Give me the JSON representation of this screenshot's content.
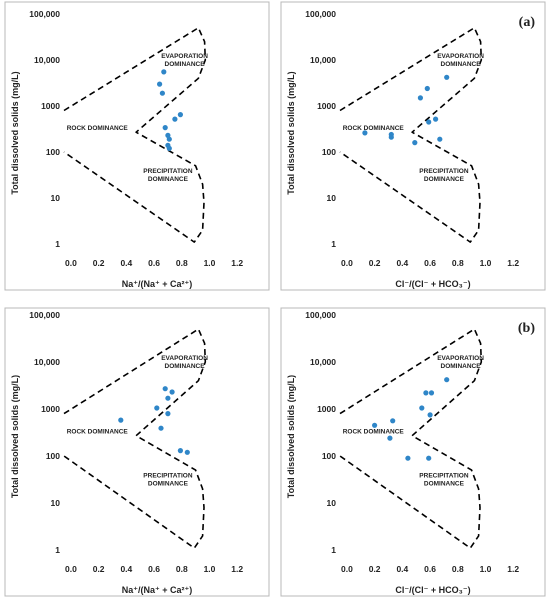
{
  "colors": {
    "point": "#2f86c8",
    "frame": "#b8b8b8",
    "boundary": "#000000"
  },
  "chart_data": [
    {
      "type": "scatter",
      "panel_label": "",
      "xlabel": "Na⁺/(Na⁺ + Ca²⁺)",
      "ylabel": "Total dissolved solids (mg/L)",
      "xlim": [
        -0.05,
        1.35
      ],
      "ylim": [
        1,
        100000
      ],
      "yscale": "log",
      "xticks": [
        "0.0",
        "0.2",
        "0.4",
        "0.6",
        "0.8",
        "1.0",
        "1.2"
      ],
      "yticks": [
        "1",
        "10",
        "100",
        "1000",
        "10,000",
        "100,000"
      ],
      "regions": {
        "evaporation": [
          "EVAPORATION",
          "DOMINANCE"
        ],
        "rock": "ROCK DOMINANCE",
        "precipitation": [
          "PRECIPITATION",
          "DOMINANCE"
        ]
      },
      "points": [
        [
          0.67,
          5500
        ],
        [
          0.64,
          3000
        ],
        [
          0.66,
          1900
        ],
        [
          0.79,
          650
        ],
        [
          0.75,
          520
        ],
        [
          0.68,
          340
        ],
        [
          0.7,
          230
        ],
        [
          0.71,
          190
        ],
        [
          0.7,
          140
        ],
        [
          0.71,
          120
        ]
      ]
    },
    {
      "type": "scatter",
      "panel_label": "(a)",
      "xlabel": "Cl⁻/(Cl⁻ + HCO₃⁻)",
      "ylabel": "Total dissolved solids (mg/L)",
      "xlim": [
        -0.05,
        1.35
      ],
      "ylim": [
        1,
        100000
      ],
      "yscale": "log",
      "xticks": [
        "0.0",
        "0.2",
        "0.4",
        "0.6",
        "0.8",
        "1.0",
        "1.2"
      ],
      "yticks": [
        "1",
        "10",
        "100",
        "1000",
        "10,000",
        "100,000"
      ],
      "regions": {
        "evaporation": [
          "EVAPORATION",
          "DOMINANCE"
        ],
        "rock": "ROCK DOMINANCE",
        "precipitation": [
          "PRECIPITATION",
          "DOMINANCE"
        ]
      },
      "points": [
        [
          0.72,
          4200
        ],
        [
          0.58,
          2400
        ],
        [
          0.53,
          1500
        ],
        [
          0.64,
          520
        ],
        [
          0.59,
          450
        ],
        [
          0.13,
          260
        ],
        [
          0.32,
          240
        ],
        [
          0.32,
          210
        ],
        [
          0.67,
          190
        ],
        [
          0.49,
          160
        ]
      ]
    },
    {
      "type": "scatter",
      "panel_label": "",
      "xlabel": "Na⁺/(Na⁺ + Ca²⁺)",
      "ylabel": "Total dissolved solids (mg/L)",
      "xlim": [
        -0.05,
        1.35
      ],
      "ylim": [
        1,
        100000
      ],
      "yscale": "log",
      "xticks": [
        "0.0",
        "0.2",
        "0.4",
        "0.6",
        "0.8",
        "1.0",
        "1.2"
      ],
      "yticks": [
        "1",
        "10",
        "100",
        "1000",
        "10,000",
        "100,000"
      ],
      "regions": {
        "evaporation": [
          "EVAPORATION",
          "DOMINANCE"
        ],
        "rock": "ROCK DOMINANCE",
        "precipitation": [
          "PRECIPITATION",
          "DOMINANCE"
        ]
      },
      "points": [
        [
          0.68,
          2700
        ],
        [
          0.73,
          2300
        ],
        [
          0.7,
          1700
        ],
        [
          0.62,
          1050
        ],
        [
          0.7,
          800
        ],
        [
          0.36,
          580
        ],
        [
          0.65,
          390
        ],
        [
          0.79,
          130
        ],
        [
          0.84,
          120
        ]
      ]
    },
    {
      "type": "scatter",
      "panel_label": "(b)",
      "xlabel": "Cl⁻/(Cl⁻ + HCO₃⁻)",
      "ylabel": "Total dissolved solids (mg/L)",
      "xlim": [
        -0.05,
        1.35
      ],
      "ylim": [
        1,
        100000
      ],
      "yscale": "log",
      "xticks": [
        "0.0",
        "0.2",
        "0.4",
        "0.6",
        "0.8",
        "1.0",
        "1.2"
      ],
      "yticks": [
        "1",
        "10",
        "100",
        "1000",
        "10,000",
        "100,000"
      ],
      "regions": {
        "evaporation": [
          "EVAPORATION",
          "DOMINANCE"
        ],
        "rock": "ROCK DOMINANCE",
        "precipitation": [
          "PRECIPITATION",
          "DOMINANCE"
        ]
      },
      "points": [
        [
          0.72,
          4200
        ],
        [
          0.57,
          2200
        ],
        [
          0.61,
          2200
        ],
        [
          0.54,
          1050
        ],
        [
          0.6,
          750
        ],
        [
          0.33,
          560
        ],
        [
          0.2,
          450
        ],
        [
          0.31,
          240
        ],
        [
          0.44,
          90
        ],
        [
          0.59,
          90
        ]
      ]
    }
  ]
}
